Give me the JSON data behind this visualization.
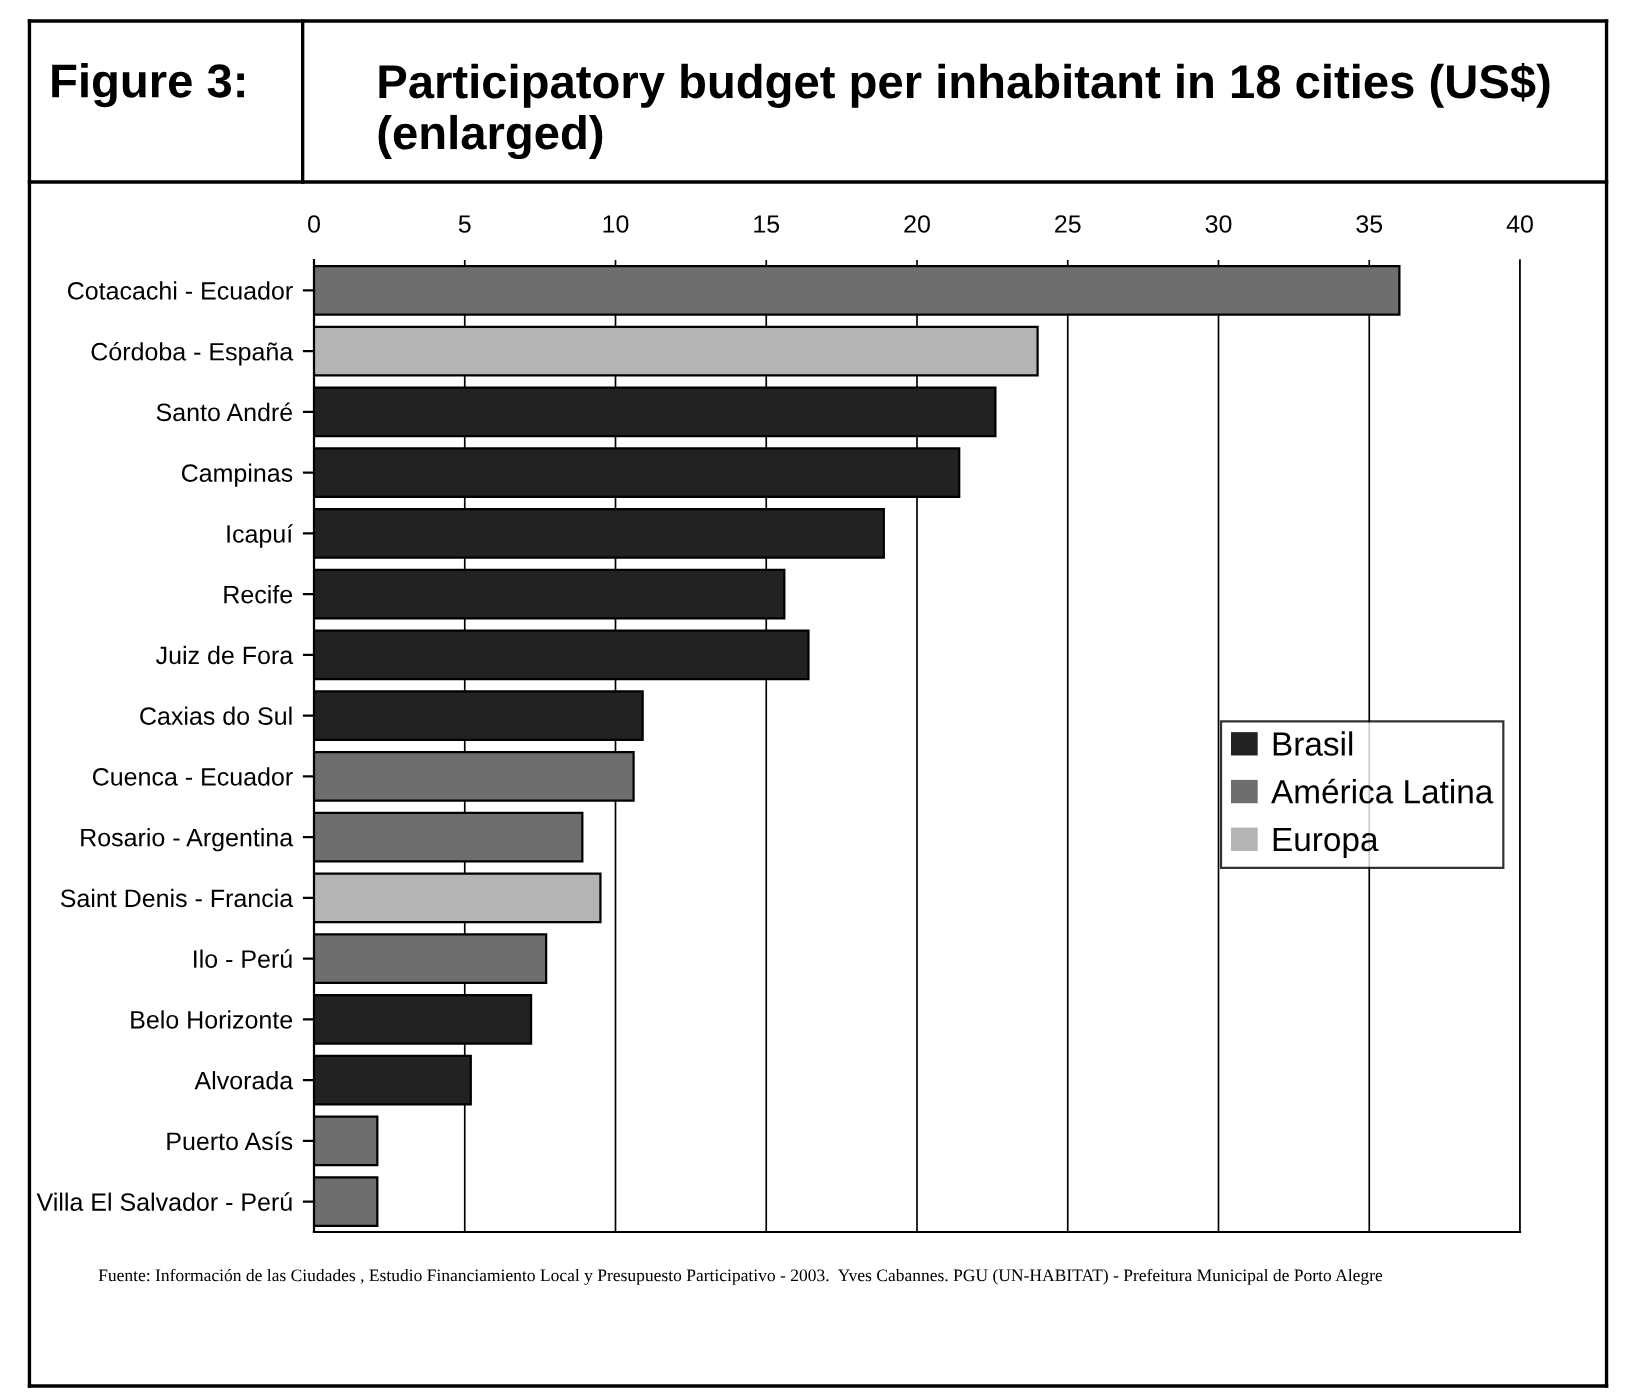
{
  "chart_data": {
    "type": "bar",
    "orientation": "horizontal",
    "title": "Participatory budget per inhabitant in 18 cities (US$) (enlarged)",
    "categories": [
      "Cotacachi - Ecuador",
      "Córdoba - España",
      "Santo André",
      "Campinas",
      "Icapuí",
      "Recife",
      "Juiz de Fora",
      "Caxias do Sul",
      "Cuenca - Ecuador",
      "Rosario - Argentina",
      "Saint Denis - Francia",
      "Ilo - Perú",
      "Belo Horizonte",
      "Alvorada",
      "Puerto Asís",
      "Villa El Salvador - Perú"
    ],
    "series": [
      {
        "name": "Brasil",
        "color": "#222222",
        "values": [
          null,
          null,
          22.6,
          21.4,
          18.9,
          15.6,
          16.4,
          10.9,
          null,
          null,
          null,
          null,
          7.2,
          5.2,
          null,
          null
        ]
      },
      {
        "name": "América Latina",
        "color": "#6e6e6e",
        "values": [
          36,
          null,
          null,
          null,
          null,
          null,
          null,
          null,
          10.6,
          8.9,
          null,
          7.7,
          null,
          null,
          2.1,
          2.1
        ]
      },
      {
        "name": "Europa",
        "color": "#b4b4b4",
        "values": [
          null,
          24,
          null,
          null,
          null,
          null,
          null,
          null,
          null,
          null,
          9.5,
          null,
          null,
          null,
          null,
          null
        ]
      }
    ],
    "xlim": [
      0,
      40
    ],
    "xticks": [
      0,
      5,
      10,
      15,
      20,
      25,
      30,
      35,
      40
    ],
    "grid": "x",
    "legend": "right",
    "annotations": [
      "Figure 3:",
      "Fuente: Información de las Ciudades , Estudio Financiamiento Local y Presupuesto Participativo - 2003.  Yves Cabannes. PGU (UN-HABITAT) - Prefeitura Municipal de Porto Alegre"
    ]
  }
}
